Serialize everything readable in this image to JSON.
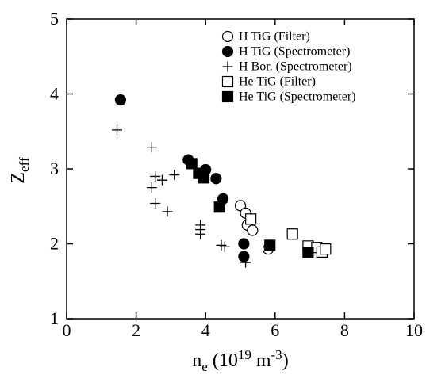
{
  "chart_data": {
    "type": "scatter",
    "xlabel": [
      "n",
      "e",
      " (10",
      "19",
      " m",
      "-3",
      ")"
    ],
    "ylabel": [
      "Z",
      "eff"
    ],
    "xlim": [
      0,
      10
    ],
    "xticks": [
      0,
      2,
      4,
      6,
      8,
      10
    ],
    "ylim": [
      1,
      5
    ],
    "yticks": [
      1,
      2,
      3,
      4,
      5
    ],
    "legend": "upper right",
    "series": [
      {
        "name": "H TiG (Filter)",
        "color": "#000000",
        "marker": "circle-open",
        "x": [
          5.0,
          5.15,
          5.2,
          5.35,
          5.8
        ],
        "values": [
          2.51,
          2.41,
          2.25,
          2.18,
          1.93
        ]
      },
      {
        "name": "H TiG (Spectrometer)",
        "color": "#000000",
        "marker": "circle-filled",
        "x": [
          1.55,
          3.5,
          4.0,
          4.3,
          4.5,
          5.1,
          5.1
        ],
        "values": [
          3.92,
          3.12,
          2.99,
          2.87,
          2.6,
          2.0,
          1.83
        ]
      },
      {
        "name": "H Bor. (Spectrometer)",
        "color": "#000000",
        "marker": "plus",
        "x": [
          1.45,
          2.45,
          2.55,
          2.45,
          2.75,
          3.1,
          2.55,
          2.9,
          3.85,
          3.85,
          3.85,
          4.45,
          4.55,
          5.15
        ],
        "values": [
          3.52,
          3.29,
          2.9,
          2.75,
          2.85,
          2.92,
          2.54,
          2.43,
          2.25,
          2.19,
          2.13,
          1.98,
          1.96,
          1.75
        ]
      },
      {
        "name": "He TiG (Filter)",
        "color": "#000000",
        "marker": "square-open",
        "x": [
          5.3,
          6.5,
          6.95,
          7.2,
          7.35,
          7.45
        ],
        "values": [
          2.33,
          2.13,
          1.97,
          1.95,
          1.89,
          1.93
        ]
      },
      {
        "name": "He TiG (Spectrometer)",
        "color": "#000000",
        "marker": "square-filled",
        "x": [
          3.6,
          3.8,
          3.95,
          4.4,
          5.85,
          6.95
        ],
        "values": [
          3.07,
          2.94,
          2.88,
          2.49,
          1.98,
          1.88
        ]
      }
    ]
  }
}
